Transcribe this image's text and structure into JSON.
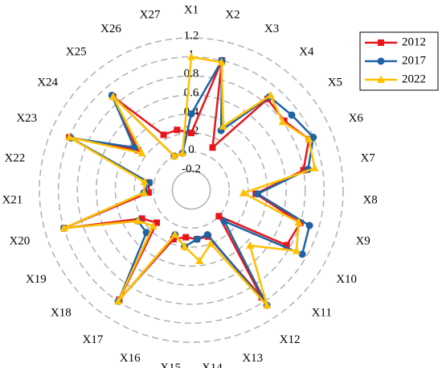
{
  "chart_data": {
    "type": "radar",
    "categories": [
      "X1",
      "X2",
      "X3",
      "X4",
      "X5",
      "X6",
      "X7",
      "X8",
      "X9",
      "X10",
      "X11",
      "X12",
      "X13",
      "X14",
      "X15",
      "X16",
      "X17",
      "X18",
      "X19",
      "X20",
      "X21",
      "X22",
      "X23",
      "X24",
      "X25",
      "X26",
      "X27"
    ],
    "rlim": [
      -0.4,
      1.2
    ],
    "rticks": [
      -0.2,
      0.0,
      0.2,
      0.4,
      0.6,
      0.8,
      1.0,
      1.2
    ],
    "grid": true,
    "legend": "upper right",
    "series": [
      {
        "name": "2012",
        "color": "#e8161b",
        "marker": "square",
        "values": [
          0.2,
          1.0,
          0.1,
          0.85,
          0.82,
          0.95,
          0.8,
          0.28,
          0.8,
          0.76,
          0.0,
          0.95,
          0.12,
          0.12,
          0.1,
          0.15,
          0.98,
          0.1,
          0.2,
          1.0,
          0.05,
          0.05,
          1.0,
          0.3,
          0.88,
          0.25,
          0.25
        ]
      },
      {
        "name": "2017",
        "color": "#1f63a4",
        "marker": "circle",
        "values": [
          0.4,
          1.0,
          0.3,
          0.88,
          0.92,
          1.0,
          0.85,
          0.3,
          0.9,
          0.95,
          0.08,
          1.05,
          0.1,
          0.12,
          0.2,
          0.1,
          1.0,
          0.25,
          0.25,
          1.0,
          0.1,
          0.05,
          0.98,
          0.35,
          0.9,
          0.0,
          0.0
        ]
      },
      {
        "name": "2022",
        "color": "#ffc000",
        "marker": "triangle",
        "values": [
          1.0,
          0.98,
          0.35,
          0.9,
          0.8,
          0.95,
          0.92,
          0.15,
          0.78,
          0.88,
          0.45,
          1.05,
          0.2,
          0.35,
          0.2,
          0.1,
          1.0,
          0.15,
          0.25,
          1.0,
          0.1,
          0.1,
          1.0,
          0.25,
          0.88,
          0.0,
          0.0
        ]
      }
    ]
  }
}
